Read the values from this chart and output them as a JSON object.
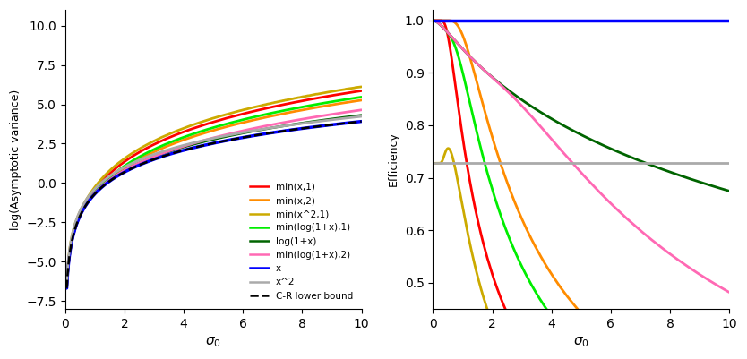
{
  "ylim_left": [
    -8,
    11
  ],
  "ylim_right": [
    0.45,
    1.02
  ],
  "xlim": [
    0,
    10
  ],
  "colors": {
    "min_x_1": "#FF0000",
    "min_x_2": "#FF8C00",
    "min_x2_1": "#CCAA00",
    "min_log1px_1": "#00EE00",
    "log1px": "#006400",
    "min_log1px_2": "#FF69B4",
    "x": "#0000FF",
    "x2": "#AAAAAA",
    "cr_bound": "#000000"
  },
  "legend_labels": [
    "min(x,1)",
    "min(x,2)",
    "min(x^2,1)",
    "min(log(1+x),1)",
    "log(1+x)",
    "min(log(1+x),2)",
    "x",
    "x^2",
    "C-R lower bound"
  ],
  "linewidths": [
    2.0,
    2.0,
    2.0,
    2.0,
    2.0,
    2.0,
    2.5,
    2.0,
    1.8
  ]
}
